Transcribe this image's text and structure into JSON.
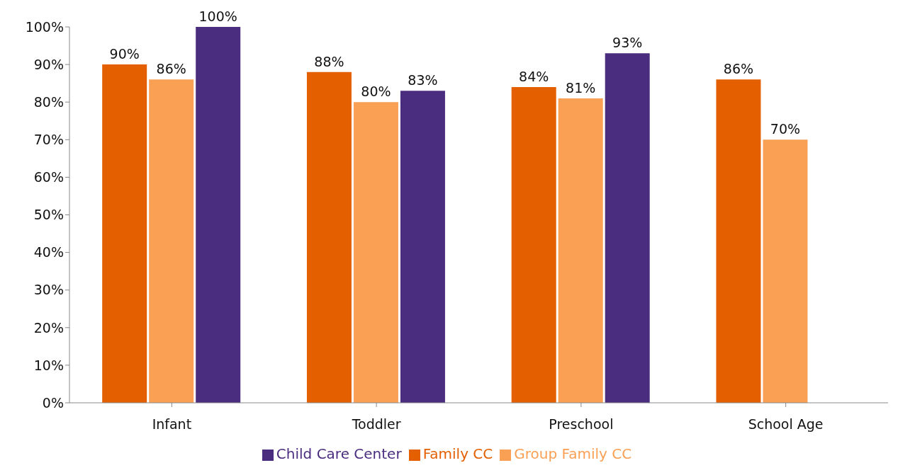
{
  "chart_data": {
    "type": "bar",
    "categories": [
      "Infant",
      "Toddler",
      "Preschool",
      "School Age"
    ],
    "series": [
      {
        "name": "Family CC",
        "color": "#e35f00",
        "values": [
          90,
          88,
          84,
          86
        ],
        "value_labels": [
          "90%",
          "88%",
          "84%",
          "86%"
        ]
      },
      {
        "name": "Group Family CC",
        "color": "#f9a055",
        "values": [
          86,
          80,
          81,
          70
        ],
        "value_labels": [
          "86%",
          "80%",
          "81%",
          "70%"
        ]
      },
      {
        "name": "Child Care Center",
        "color": "#4b2d7f",
        "values": [
          100,
          83,
          93,
          null
        ],
        "value_labels": [
          "100%",
          "83%",
          "93%",
          null
        ]
      }
    ],
    "ylim": [
      0,
      100
    ],
    "yticks": [
      {
        "value": 0,
        "label": "0%"
      },
      {
        "value": 10,
        "label": "10%"
      },
      {
        "value": 20,
        "label": "20%"
      },
      {
        "value": 30,
        "label": "30%"
      },
      {
        "value": 40,
        "label": "40%"
      },
      {
        "value": 50,
        "label": "50%"
      },
      {
        "value": 60,
        "label": "60%"
      },
      {
        "value": 70,
        "label": "70%"
      },
      {
        "value": 80,
        "label": "80%"
      },
      {
        "value": 90,
        "label": "90%"
      },
      {
        "value": 100,
        "label": "100%"
      }
    ],
    "grid": false,
    "legend": "bottom"
  }
}
